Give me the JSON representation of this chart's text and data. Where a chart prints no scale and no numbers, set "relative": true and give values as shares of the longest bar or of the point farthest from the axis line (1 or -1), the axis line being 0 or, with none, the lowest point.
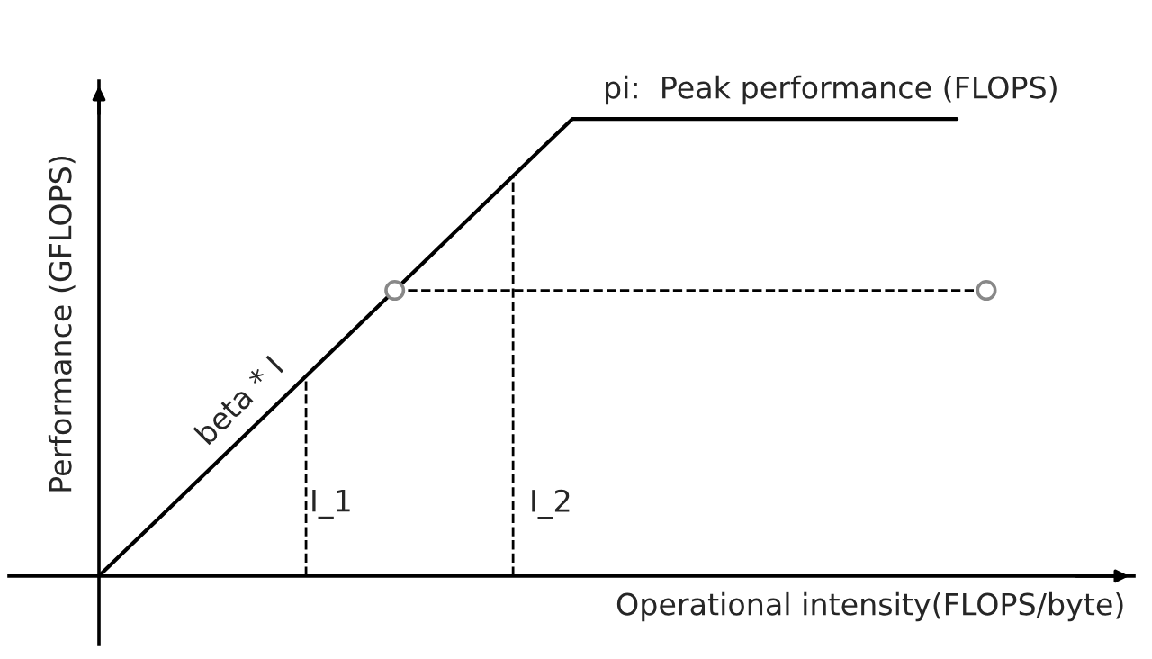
{
  "chart_data": {
    "type": "line",
    "relative": true,
    "xlabel": "Operational intensity(FLOPS/byte)",
    "ylabel": "Performance (GFLOPS)",
    "categories": [
      null,
      null,
      null,
      null,
      null,
      null,
      null,
      null,
      null,
      null,
      null,
      null,
      null,
      null,
      null,
      null,
      null,
      null,
      null,
      null,
      null,
      null,
      null,
      null,
      null,
      null,
      null,
      null,
      null,
      null,
      null
    ],
    "series": [
      {
        "color": "#000000",
        "values": [
          0,
          0.0625,
          0.125,
          0.1875,
          0.25,
          0.3125,
          0.375,
          0.4375,
          0.5,
          0.5625,
          0.625,
          0.6875,
          0.75,
          0.8125,
          0.875,
          0.9375,
          1,
          1,
          1,
          1,
          1,
          1,
          1,
          1,
          1,
          1,
          1,
          1,
          1,
          1,
          null
        ]
      },
      {
        "color": "#000000",
        "line_style": "dashed",
        "values": [
          null,
          null,
          null,
          null,
          null,
          null,
          null,
          null,
          null,
          null,
          0.625,
          0.625,
          0.625,
          0.625,
          0.625,
          0.625,
          0.625,
          0.625,
          0.625,
          0.625,
          0.625,
          0.625,
          0.625,
          0.625,
          0.625,
          0.625,
          0.625,
          0.625,
          0.625,
          0.625,
          0.625
        ]
      }
    ],
    "annotations": [
      "pi:  Peak performance (FLOPS)",
      "beta * I",
      "I_1",
      "I_2"
    ]
  }
}
